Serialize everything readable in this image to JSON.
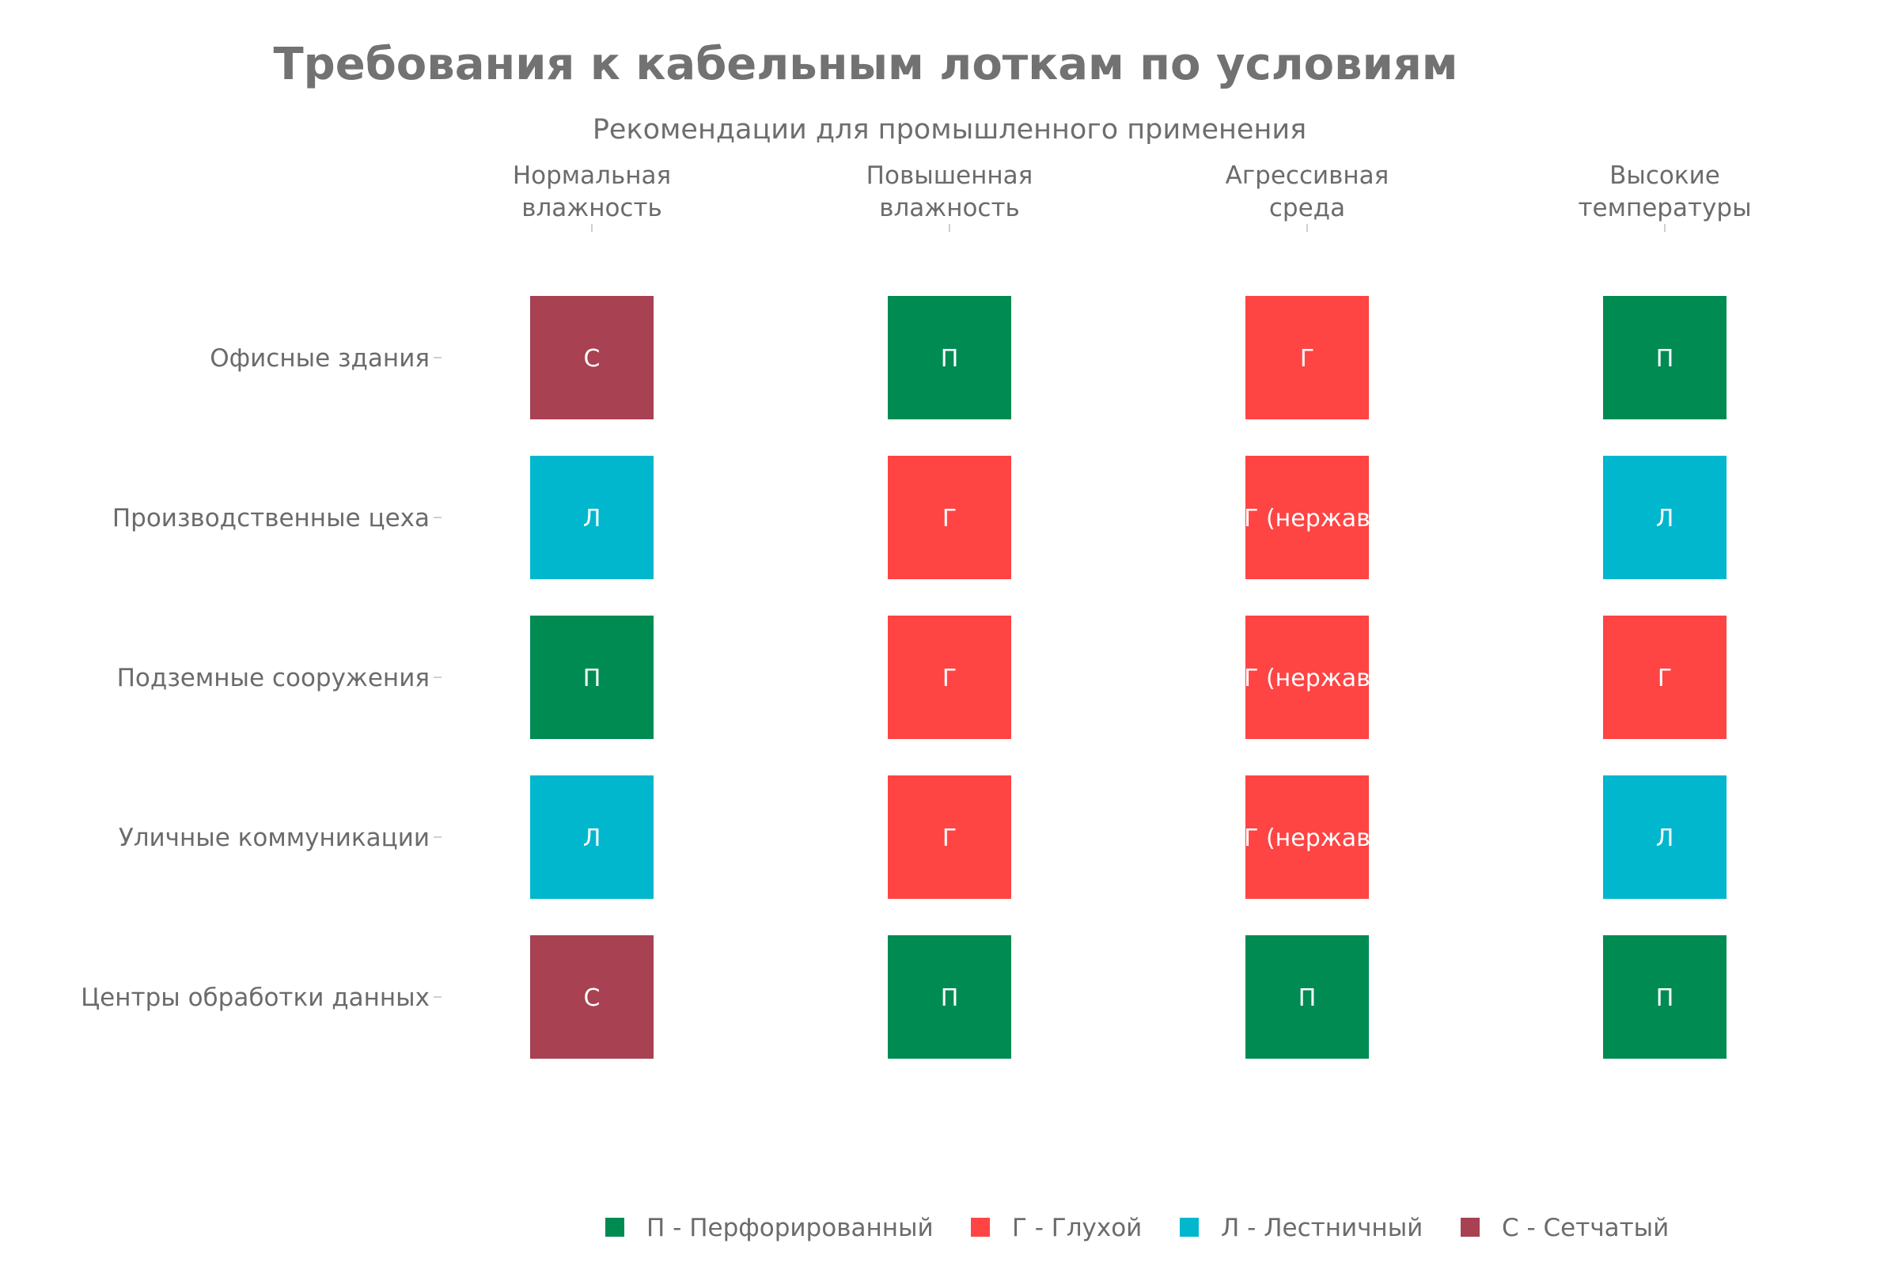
{
  "chart_data": {
    "type": "table",
    "title": "Требования к кабельным лоткам по условиям",
    "subtitle": "Рекомендации для промышленного применения",
    "columns": [
      [
        "Нормальная",
        "влажность"
      ],
      [
        "Повышенная",
        "влажность"
      ],
      [
        "Агрессивная",
        "среда"
      ],
      [
        "Высокие",
        "температуры"
      ]
    ],
    "rows": [
      "Офисные здания",
      "Производственные цеха",
      "Подземные сооружения",
      "Уличные коммуникации",
      "Центры обработки данных"
    ],
    "cells": [
      [
        "С",
        "П",
        "Г",
        "П"
      ],
      [
        "Л",
        "Г",
        "Г (нержав",
        "Л"
      ],
      [
        "П",
        "Г",
        "Г (нержав",
        "Г"
      ],
      [
        "Л",
        "Г",
        "Г (нержав",
        "Л"
      ],
      [
        "С",
        "П",
        "П",
        "П"
      ]
    ],
    "legend": [
      {
        "key": "П",
        "label": "П - Перфорированный",
        "color": "#008b53"
      },
      {
        "key": "Г",
        "label": "Г - Глухой",
        "color": "#ff4444"
      },
      {
        "key": "Л",
        "label": "Л - Лестничный",
        "color": "#00b7cd"
      },
      {
        "key": "С",
        "label": "С - Сетчатый",
        "color": "#a84152"
      }
    ],
    "legend_position": "bottom"
  }
}
